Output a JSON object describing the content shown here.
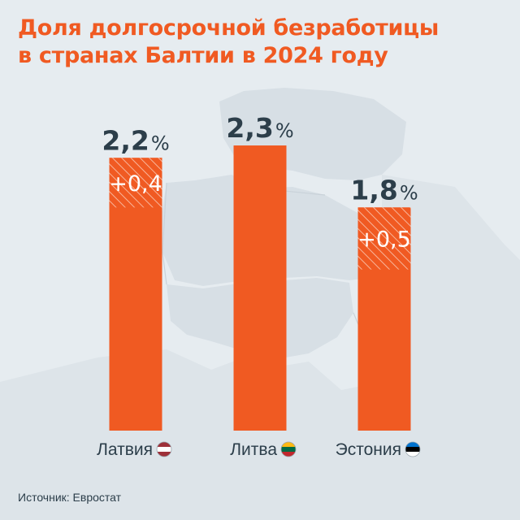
{
  "title_lines": [
    "Доля долгосрочной безработицы",
    "в странах Балтии в 2024 году"
  ],
  "source": {
    "label": "Источник:",
    "value": "Евростат"
  },
  "colors": {
    "bar": "#f05a22",
    "title": "#f05a22",
    "text": "#2c3e4a",
    "background": "#e6ecf0",
    "map": "#d6dee4"
  },
  "chart_data": {
    "type": "bar",
    "title": "Доля долгосрочной безработицы в странах Балтии в 2024 году",
    "unit": "%",
    "ylim": [
      0,
      2.7
    ],
    "grid": false,
    "legend": "none",
    "categories": [
      "Латвия",
      "Литва",
      "Эстония"
    ],
    "values": [
      2.2,
      2.3,
      1.8
    ],
    "value_labels": [
      "2,2",
      "2,3",
      "1,8"
    ],
    "change": [
      0.4,
      null,
      0.5
    ],
    "change_labels": [
      "+0,4",
      "",
      "+0,5"
    ],
    "flags": [
      {
        "country": "Латвия",
        "icon": "latvia-flag-icon",
        "stripes": [
          "#9e3039",
          "#ffffff",
          "#9e3039"
        ]
      },
      {
        "country": "Литва",
        "icon": "lithuania-flag-icon",
        "stripes": [
          "#fdb913",
          "#006a44",
          "#c1272d"
        ]
      },
      {
        "country": "Эстония",
        "icon": "estonia-flag-icon",
        "stripes": [
          "#0072ce",
          "#000000",
          "#ffffff"
        ]
      }
    ]
  }
}
